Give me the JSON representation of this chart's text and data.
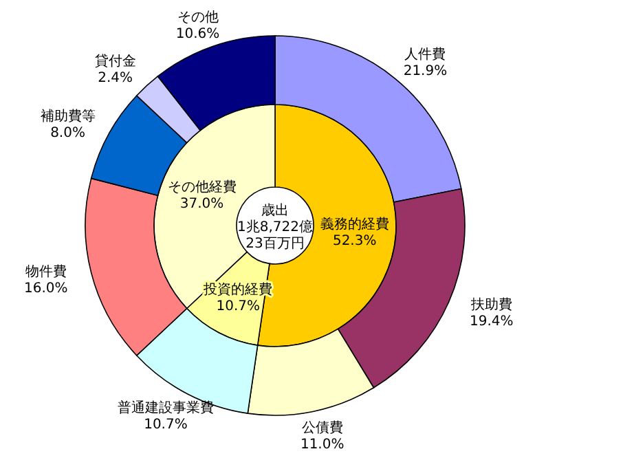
{
  "chart_data": [
    {
      "type": "donut",
      "title": "歳出",
      "annotations": [
        "1兆8,722億",
        "23百万円"
      ],
      "categories": [
        "義務的経費",
        "投資的経費",
        "その他経費"
      ],
      "values": [
        52.3,
        10.7,
        37.0
      ],
      "value_labels": [
        "52.3%",
        "10.7%",
        "37.0%"
      ],
      "colors": [
        "#ffcc00",
        "#ffff99",
        "#ffffcc"
      ]
    },
    {
      "type": "donut",
      "categories": [
        "人件費",
        "扶助費",
        "公債費",
        "普通建設事業費",
        "物件費",
        "補助費等",
        "貸付金",
        "その他"
      ],
      "values": [
        21.9,
        19.4,
        11.0,
        10.7,
        16.0,
        8.0,
        2.4,
        10.6
      ],
      "value_labels": [
        "21.9%",
        "19.4%",
        "11.0%",
        "10.7%",
        "16.0%",
        "8.0%",
        "2.4%",
        "10.6%"
      ],
      "colors": [
        "#9999ff",
        "#993366",
        "#ffffcc",
        "#ccffff",
        "#ff8080",
        "#0066cc",
        "#ccccff",
        "#000080"
      ]
    }
  ]
}
